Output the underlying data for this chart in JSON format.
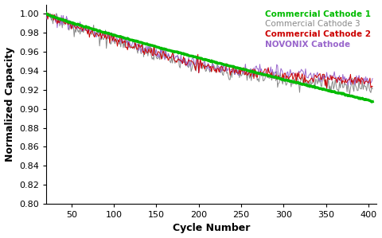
{
  "title": "",
  "xlabel": "Cycle Number",
  "ylabel": "Normalized Capacity",
  "xlim": [
    20,
    410
  ],
  "ylim": [
    0.8,
    1.01
  ],
  "yticks": [
    0.8,
    0.82,
    0.84,
    0.86,
    0.88,
    0.9,
    0.92,
    0.94,
    0.96,
    0.98,
    1.0
  ],
  "xticks": [
    50,
    100,
    150,
    200,
    250,
    300,
    350,
    400
  ],
  "legend": [
    {
      "label": "NOVONIX Cathode",
      "color": "#00BB00",
      "bold": true
    },
    {
      "label": "Commercial Cathode 1",
      "color": "#888888",
      "bold": false
    },
    {
      "label": "Commercial Cathode 2",
      "color": "#CC0000",
      "bold": true
    },
    {
      "label": "Commercial Cathode 3",
      "color": "#9966CC",
      "bold": true
    }
  ],
  "background_color": "#ffffff"
}
